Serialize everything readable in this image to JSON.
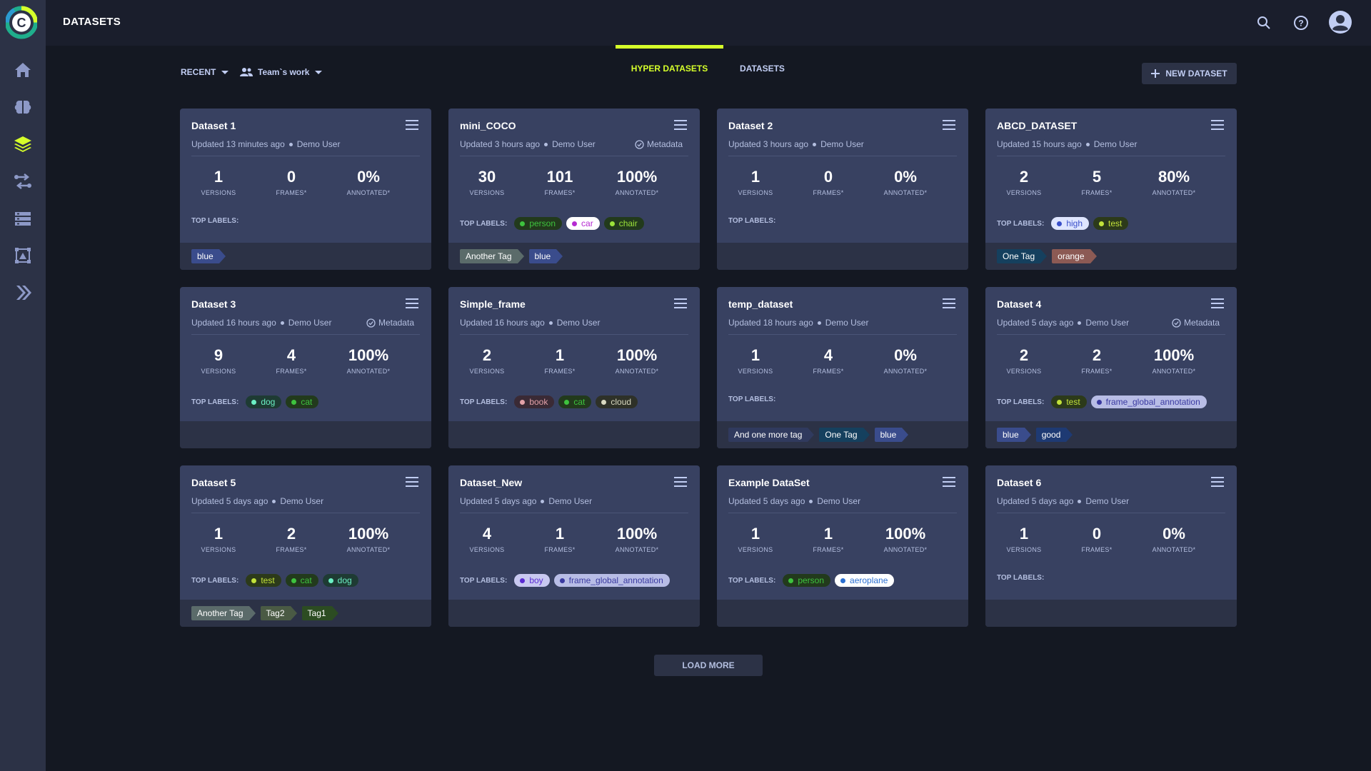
{
  "header": {
    "title": "DATASETS",
    "icons": [
      "search-icon",
      "help-icon",
      "user-avatar-icon"
    ]
  },
  "sidebar": {
    "items": [
      "home-icon",
      "brain-icon",
      "layers-icon",
      "pipelines-icon",
      "reports-icon",
      "annotation-icon",
      "deploy-icon"
    ]
  },
  "toolbar": {
    "sort_label": "RECENT",
    "scope_label": "Team`s work",
    "tabs": [
      {
        "label": "HYPER DATASETS",
        "active": true
      },
      {
        "label": "DATASETS",
        "active": false
      }
    ],
    "new_button": "NEW DATASET"
  },
  "stat_labels": {
    "versions": "VERSIONS",
    "frames": "FRAMES*",
    "annotated": "ANNOTATED*"
  },
  "top_labels_caption": "TOP LABELS:",
  "meta_label": "Metadata",
  "cards": [
    {
      "name": "Dataset 1",
      "updated": "Updated 13 minutes ago",
      "user": "Demo User",
      "metadata": false,
      "versions": "1",
      "frames": "0",
      "annotated": "0%",
      "labels": [],
      "tags": [
        {
          "text": "blue",
          "color": "#3a4c8c"
        }
      ]
    },
    {
      "name": "mini_COCO",
      "updated": "Updated 3 hours ago",
      "user": "Demo User",
      "metadata": true,
      "versions": "30",
      "frames": "101",
      "annotated": "100%",
      "labels": [
        {
          "text": "person",
          "bg": "#223a1c",
          "fg": "#3ec33e",
          "dot": "#3ec33e"
        },
        {
          "text": "car",
          "bg": "#ffffff",
          "fg": "#b52bd1",
          "dot": "#b52bd1"
        },
        {
          "text": "chair",
          "bg": "#223a1c",
          "fg": "#9be23a",
          "dot": "#9be23a"
        }
      ],
      "tags": [
        {
          "text": "Another Tag",
          "color": "#5b6b6a"
        },
        {
          "text": "blue",
          "color": "#3a4c8c"
        }
      ]
    },
    {
      "name": "Dataset 2",
      "updated": "Updated 3 hours ago",
      "user": "Demo User",
      "metadata": false,
      "versions": "1",
      "frames": "0",
      "annotated": "0%",
      "labels": [],
      "tags": []
    },
    {
      "name": "ABCD_DATASET",
      "updated": "Updated 15 hours ago",
      "user": "Demo User",
      "metadata": false,
      "versions": "2",
      "frames": "5",
      "annotated": "80%",
      "labels": [
        {
          "text": "high",
          "bg": "#dfe6ff",
          "fg": "#3a4fc9",
          "dot": "#3a4fc9"
        },
        {
          "text": "test",
          "bg": "#2c3a1a",
          "fg": "#c2e23a",
          "dot": "#c2e23a"
        }
      ],
      "tags": [
        {
          "text": "One Tag",
          "color": "#15405e"
        },
        {
          "text": "orange",
          "color": "#8c5a54"
        }
      ]
    },
    {
      "name": "Dataset 3",
      "updated": "Updated 16 hours ago",
      "user": "Demo User",
      "metadata": true,
      "versions": "9",
      "frames": "4",
      "annotated": "100%",
      "labels": [
        {
          "text": "dog",
          "bg": "#1e3b33",
          "fg": "#6bf0c4",
          "dot": "#6bf0c4"
        },
        {
          "text": "cat",
          "bg": "#223a1c",
          "fg": "#3ec33e",
          "dot": "#3ec33e"
        }
      ],
      "tags": []
    },
    {
      "name": "Simple_frame",
      "updated": "Updated 16 hours ago",
      "user": "Demo User",
      "metadata": false,
      "versions": "2",
      "frames": "1",
      "annotated": "100%",
      "labels": [
        {
          "text": "book",
          "bg": "#3a2a35",
          "fg": "#e2a1a8",
          "dot": "#e2a1a8"
        },
        {
          "text": "cat",
          "bg": "#223a1c",
          "fg": "#3ec33e",
          "dot": "#3ec33e"
        },
        {
          "text": "cloud",
          "bg": "#2e3128",
          "fg": "#d9d9c1",
          "dot": "#d9d9c1"
        }
      ],
      "tags": []
    },
    {
      "name": "temp_dataset",
      "updated": "Updated 18 hours ago",
      "user": "Demo User",
      "metadata": false,
      "versions": "1",
      "frames": "4",
      "annotated": "0%",
      "labels": [],
      "tags": [
        {
          "text": "And one more tag",
          "color": "#303a5e"
        },
        {
          "text": "One Tag",
          "color": "#15405e"
        },
        {
          "text": "blue",
          "color": "#3a4c8c"
        }
      ]
    },
    {
      "name": "Dataset 4",
      "updated": "Updated 5 days ago",
      "user": "Demo User",
      "metadata": true,
      "versions": "2",
      "frames": "2",
      "annotated": "100%",
      "labels": [
        {
          "text": "test",
          "bg": "#2c3a1a",
          "fg": "#c2e23a",
          "dot": "#c2e23a"
        },
        {
          "text": "frame_global_annotation",
          "bg": "#b8bde6",
          "fg": "#3a3aa0",
          "dot": "#3a3aa0"
        }
      ],
      "tags": [
        {
          "text": "blue",
          "color": "#3a4c8c"
        },
        {
          "text": "good",
          "color": "#1e3a73"
        }
      ]
    },
    {
      "name": "Dataset 5",
      "updated": "Updated 5 days ago",
      "user": "Demo User",
      "metadata": false,
      "versions": "1",
      "frames": "2",
      "annotated": "100%",
      "labels": [
        {
          "text": "test",
          "bg": "#2c3a1a",
          "fg": "#c2e23a",
          "dot": "#c2e23a"
        },
        {
          "text": "cat",
          "bg": "#223a1c",
          "fg": "#3ec33e",
          "dot": "#3ec33e"
        },
        {
          "text": "dog",
          "bg": "#1e3b33",
          "fg": "#6bf0c4",
          "dot": "#6bf0c4"
        }
      ],
      "tags": [
        {
          "text": "Another Tag",
          "color": "#5b6b6a"
        },
        {
          "text": "Tag2",
          "color": "#4a5a44"
        },
        {
          "text": "Tag1",
          "color": "#2c4c22"
        }
      ]
    },
    {
      "name": "Dataset_New",
      "updated": "Updated 5 days ago",
      "user": "Demo User",
      "metadata": false,
      "versions": "4",
      "frames": "1",
      "annotated": "100%",
      "labels": [
        {
          "text": "boy",
          "bg": "#c8c8f0",
          "fg": "#5a2bd1",
          "dot": "#5a2bd1"
        },
        {
          "text": "frame_global_annotation",
          "bg": "#b8bde6",
          "fg": "#3a3aa0",
          "dot": "#3a3aa0"
        }
      ],
      "tags": []
    },
    {
      "name": "Example DataSet",
      "updated": "Updated 5 days ago",
      "user": "Demo User",
      "metadata": false,
      "versions": "1",
      "frames": "1",
      "annotated": "100%",
      "labels": [
        {
          "text": "person",
          "bg": "#223a1c",
          "fg": "#3ec33e",
          "dot": "#3ec33e"
        },
        {
          "text": "aeroplane",
          "bg": "#ffffff",
          "fg": "#2b6fd1",
          "dot": "#2b6fd1"
        }
      ],
      "tags": []
    },
    {
      "name": "Dataset 6",
      "updated": "Updated 5 days ago",
      "user": "Demo User",
      "metadata": false,
      "versions": "1",
      "frames": "0",
      "annotated": "0%",
      "labels": [],
      "tags": []
    }
  ],
  "load_more": "LOAD MORE",
  "colors": {
    "accent": "#d6ff2a",
    "card_bg": "#384161",
    "page_bg": "#141822",
    "header_bg": "#1a1e2c",
    "sidebar_bg": "#2c3246"
  }
}
